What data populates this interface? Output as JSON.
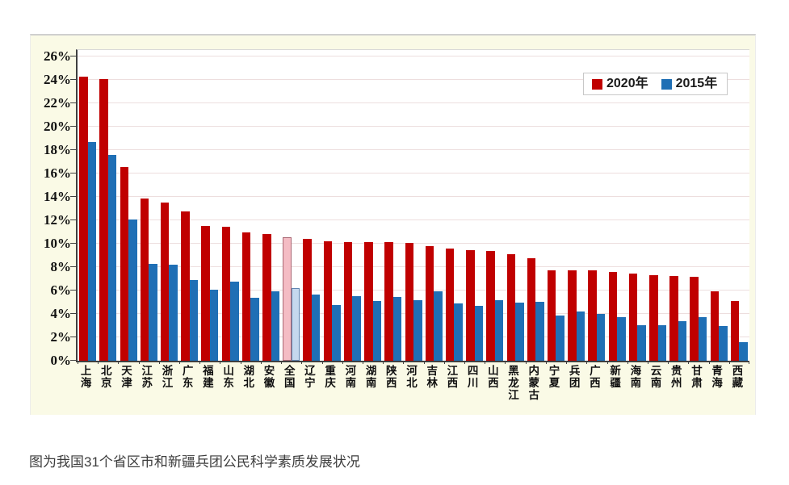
{
  "page": {
    "caption": "图为我国31个省区市和新疆兵团公民科学素质发展状况"
  },
  "chart_data": {
    "type": "bar",
    "title": "",
    "xlabel": "",
    "ylabel": "",
    "ylim": [
      0,
      26
    ],
    "ytick_step": 2,
    "ytick_labels": [
      "0%",
      "2%",
      "4%",
      "6%",
      "8%",
      "10%",
      "12%",
      "14%",
      "16%",
      "18%",
      "20%",
      "22%",
      "24%",
      "26%"
    ],
    "grid": true,
    "legend_position": "top-right",
    "categories": [
      "上海",
      "北京",
      "天津",
      "江苏",
      "浙江",
      "广东",
      "福建",
      "山东",
      "湖北",
      "安徽",
      "全国",
      "辽宁",
      "重庆",
      "河南",
      "湖南",
      "陕西",
      "河北",
      "吉林",
      "江西",
      "四川",
      "山西",
      "黑龙江",
      "内蒙古",
      "宁夏",
      "兵团",
      "广西",
      "新疆",
      "海南",
      "云南",
      "贵州",
      "甘肃",
      "青海",
      "西藏"
    ],
    "series": [
      {
        "name": "2020年",
        "color": "#C00000",
        "values": [
          24.3,
          24.07,
          16.58,
          13.84,
          13.53,
          12.79,
          11.51,
          11.47,
          10.95,
          10.8,
          10.56,
          10.42,
          10.2,
          10.17,
          10.14,
          10.13,
          10.05,
          9.8,
          9.62,
          9.42,
          9.37,
          9.09,
          8.73,
          7.72,
          7.72,
          7.71,
          7.56,
          7.47,
          7.34,
          7.22,
          7.14,
          5.95,
          5.09
        ]
      },
      {
        "name": "2015年",
        "color": "#1F6FB5",
        "values": [
          18.71,
          17.56,
          12.06,
          8.25,
          8.21,
          6.91,
          6.1,
          6.76,
          5.4,
          5.94,
          6.2,
          5.66,
          4.74,
          5.5,
          5.1,
          5.45,
          5.2,
          5.9,
          4.9,
          4.68,
          5.2,
          5.0,
          5.05,
          3.85,
          4.2,
          4.0,
          3.75,
          3.05,
          3.05,
          3.35,
          3.7,
          3.0,
          1.6
        ]
      }
    ],
    "highlight": {
      "category": "全国",
      "index": 10,
      "fill_2020": "#F4BCC4",
      "border_2020": "#A96874",
      "fill_2015": "#C5D8EE",
      "border_2015": "#5F84B0"
    },
    "colors": {
      "panel_background": "#FAFAE6",
      "plot_background": "#FFFFFF",
      "gridline": "#EDDEDE",
      "axis": "#3F3F3F"
    }
  }
}
